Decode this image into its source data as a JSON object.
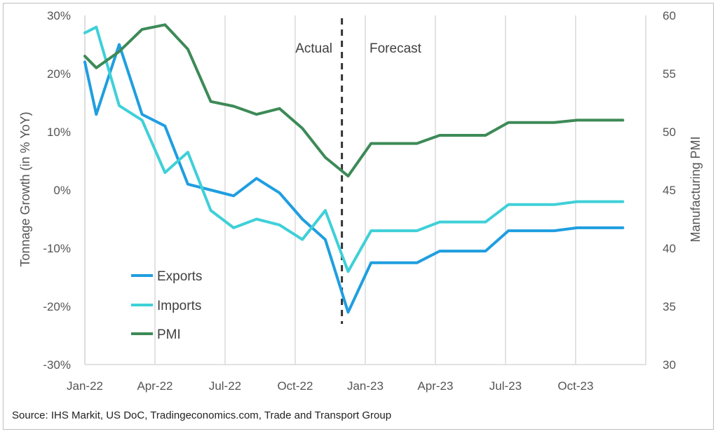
{
  "chart_data": {
    "type": "line",
    "title": "",
    "y_left_label": "Tonnage Growth (in % YoY)",
    "y_right_label": "Manufacturing PMI",
    "y_left_range": [
      -30,
      30
    ],
    "y_left_ticks": [
      "30%",
      "20%",
      "10%",
      "0%",
      "-10%",
      "-20%",
      "-30%"
    ],
    "y_right_range": [
      30,
      60
    ],
    "y_right_ticks": [
      "60",
      "55",
      "50",
      "45",
      "40",
      "35",
      "30"
    ],
    "x_ticks": [
      "Jan-22",
      "Apr-22",
      "Jul-22",
      "Oct-22",
      "Jan-23",
      "Apr-23",
      "Jul-23",
      "Oct-23"
    ],
    "x_months": [
      "Jan-22",
      "Feb-22",
      "Mar-22",
      "Apr-22",
      "May-22",
      "Jun-22",
      "Jul-22",
      "Aug-22",
      "Sep-22",
      "Oct-22",
      "Nov-22",
      "Dec-22",
      "Jan-23",
      "Feb-23",
      "Mar-23",
      "Apr-23",
      "May-23",
      "Jun-23",
      "Jul-23",
      "Aug-23",
      "Sep-23",
      "Oct-23",
      "Nov-23",
      "Dec-23"
    ],
    "grid": "vertical",
    "annotations": {
      "actual": "Actual",
      "forecast": "Forecast",
      "divider_after": "Dec-22"
    },
    "legend_position": "bottom-left",
    "series": [
      {
        "name": "Exports",
        "axis": "left",
        "color": "#1f9ee0",
        "x": [
          "Dec-21",
          "Jan-22",
          "Feb-22",
          "Mar-22",
          "Apr-22",
          "May-22",
          "Jun-22",
          "Jul-22",
          "Aug-22",
          "Sep-22",
          "Oct-22",
          "Nov-22",
          "Dec-22",
          "Jan-23",
          "Feb-23",
          "Mar-23",
          "Apr-23",
          "May-23",
          "Jun-23",
          "Jul-23",
          "Aug-23",
          "Sep-23",
          "Oct-23",
          "Nov-23",
          "Dec-23"
        ],
        "values": [
          22,
          13,
          25,
          13,
          11,
          1,
          0,
          -1,
          2,
          -0.5,
          -5,
          -8.5,
          -21,
          -12.5,
          -12.5,
          -12.5,
          -10.5,
          -10.5,
          -10.5,
          -7,
          -7,
          -7,
          -6.5,
          -6.5,
          -6.5
        ]
      },
      {
        "name": "Imports",
        "axis": "left",
        "color": "#3fd0d8",
        "x": [
          "Dec-21",
          "Jan-22",
          "Feb-22",
          "Mar-22",
          "Apr-22",
          "May-22",
          "Jun-22",
          "Jul-22",
          "Aug-22",
          "Sep-22",
          "Oct-22",
          "Nov-22",
          "Dec-22",
          "Jan-23",
          "Feb-23",
          "Mar-23",
          "Apr-23",
          "May-23",
          "Jun-23",
          "Jul-23",
          "Aug-23",
          "Sep-23",
          "Oct-23",
          "Nov-23",
          "Dec-23"
        ],
        "values": [
          27,
          28,
          14.5,
          12,
          3,
          6.5,
          -3.5,
          -6.5,
          -5,
          -6,
          -8.5,
          -3.5,
          -14,
          -7,
          -7,
          -7,
          -5.5,
          -5.5,
          -5.5,
          -2.5,
          -2.5,
          -2.5,
          -2,
          -2,
          -2
        ]
      },
      {
        "name": "PMI",
        "axis": "right",
        "color": "#3d8a57",
        "x": [
          "Dec-21",
          "Jan-22",
          "Feb-22",
          "Mar-22",
          "Apr-22",
          "May-22",
          "Jun-22",
          "Jul-22",
          "Aug-22",
          "Sep-22",
          "Oct-22",
          "Nov-22",
          "Dec-22",
          "Jan-23",
          "Feb-23",
          "Mar-23",
          "Apr-23",
          "May-23",
          "Jun-23",
          "Jul-23",
          "Aug-23",
          "Sep-23",
          "Oct-23",
          "Nov-23",
          "Dec-23"
        ],
        "values": [
          56.5,
          55.5,
          56.9,
          58.8,
          59.2,
          57.1,
          52.6,
          52.2,
          51.5,
          52,
          50.3,
          47.8,
          46.2,
          49,
          49,
          49,
          49.7,
          49.7,
          49.7,
          50.8,
          50.8,
          50.8,
          51,
          51,
          51
        ]
      }
    ]
  },
  "footer": {
    "source": "Source: IHS Markit, US DoC, Tradingeconomics.com, Trade and Transport Group"
  }
}
